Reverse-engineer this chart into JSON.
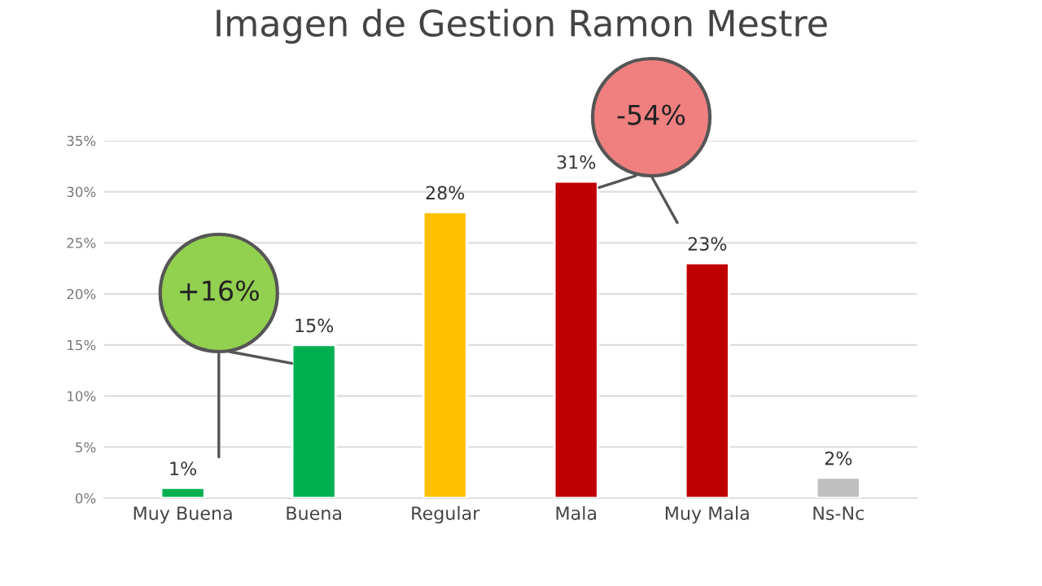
{
  "chart_data": {
    "type": "bar",
    "title": "Imagen de Gestion Ramon Mestre",
    "categories": [
      "Muy Buena",
      "Buena",
      "Regular",
      "Mala",
      "Muy Mala",
      "Ns-Nc"
    ],
    "values": [
      1,
      15,
      28,
      31,
      23,
      2
    ],
    "colors": [
      "#00b050",
      "#00b050",
      "#ffc000",
      "#c00000",
      "#c00000",
      "#bfbfbf"
    ],
    "value_labels": [
      "1%",
      "15%",
      "28%",
      "31%",
      "23%",
      "2%"
    ],
    "ylim": [
      0,
      35
    ],
    "yticks": [
      {
        "value": 0,
        "label": "0%"
      },
      {
        "value": 5,
        "label": "5%"
      },
      {
        "value": 10,
        "label": "10%"
      },
      {
        "value": 15,
        "label": "15%"
      },
      {
        "value": 20,
        "label": "20%"
      },
      {
        "value": 25,
        "label": "25%"
      },
      {
        "value": 30,
        "label": "30%"
      },
      {
        "value": 35,
        "label": "35%"
      }
    ],
    "grid": "y",
    "annotations": [
      "+16%",
      "-54%"
    ]
  }
}
